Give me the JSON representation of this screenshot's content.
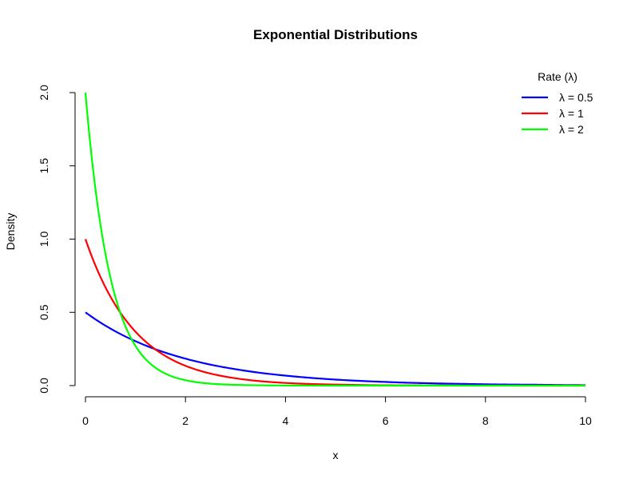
{
  "chart_data": {
    "type": "line",
    "title": "Exponential Distributions",
    "xlabel": "x",
    "ylabel": "Density",
    "xlim": [
      0,
      10
    ],
    "ylim": [
      0,
      2
    ],
    "x_ticks": [
      "0",
      "2",
      "4",
      "6",
      "8",
      "10"
    ],
    "y_ticks": [
      "0.0",
      "0.5",
      "1.0",
      "1.5",
      "2.0"
    ],
    "grid": false,
    "legend": {
      "title": "Rate (λ)",
      "placement": "top-right"
    },
    "series": [
      {
        "name": "λ = 0.5",
        "color": "#0000ff",
        "x": [
          0,
          0.5,
          1,
          1.5,
          2,
          2.5,
          3,
          3.5,
          4,
          4.5,
          5,
          5.5,
          6,
          6.5,
          7,
          7.5,
          8,
          8.5,
          9,
          9.5,
          10
        ],
        "y": [
          0.5,
          0.389,
          0.303,
          0.236,
          0.184,
          0.143,
          0.112,
          0.087,
          0.068,
          0.053,
          0.041,
          0.032,
          0.025,
          0.019,
          0.015,
          0.012,
          0.009,
          0.007,
          0.006,
          0.004,
          0.003
        ]
      },
      {
        "name": "λ = 1",
        "color": "#ff0000",
        "x": [
          0,
          0.5,
          1,
          1.5,
          2,
          2.5,
          3,
          3.5,
          4,
          4.5,
          5,
          5.5,
          6,
          6.5,
          7,
          7.5,
          8,
          8.5,
          9,
          9.5,
          10
        ],
        "y": [
          1.0,
          0.607,
          0.368,
          0.223,
          0.135,
          0.082,
          0.05,
          0.03,
          0.018,
          0.011,
          0.007,
          0.004,
          0.002,
          0.0015,
          0.0009,
          0.0006,
          0.0003,
          0.0002,
          0.0001,
          0.0001,
          0.0
        ]
      },
      {
        "name": "λ = 2",
        "color": "#00ff00",
        "x": [
          0,
          0.25,
          0.5,
          0.75,
          1,
          1.25,
          1.5,
          1.75,
          2,
          2.5,
          3,
          3.5,
          4,
          5,
          6,
          7,
          8,
          9,
          10
        ],
        "y": [
          2.0,
          1.213,
          0.736,
          0.446,
          0.271,
          0.164,
          0.1,
          0.06,
          0.037,
          0.013,
          0.005,
          0.002,
          0.0007,
          0.0001,
          0.0,
          0.0,
          0.0,
          0.0,
          0.0
        ]
      }
    ]
  }
}
